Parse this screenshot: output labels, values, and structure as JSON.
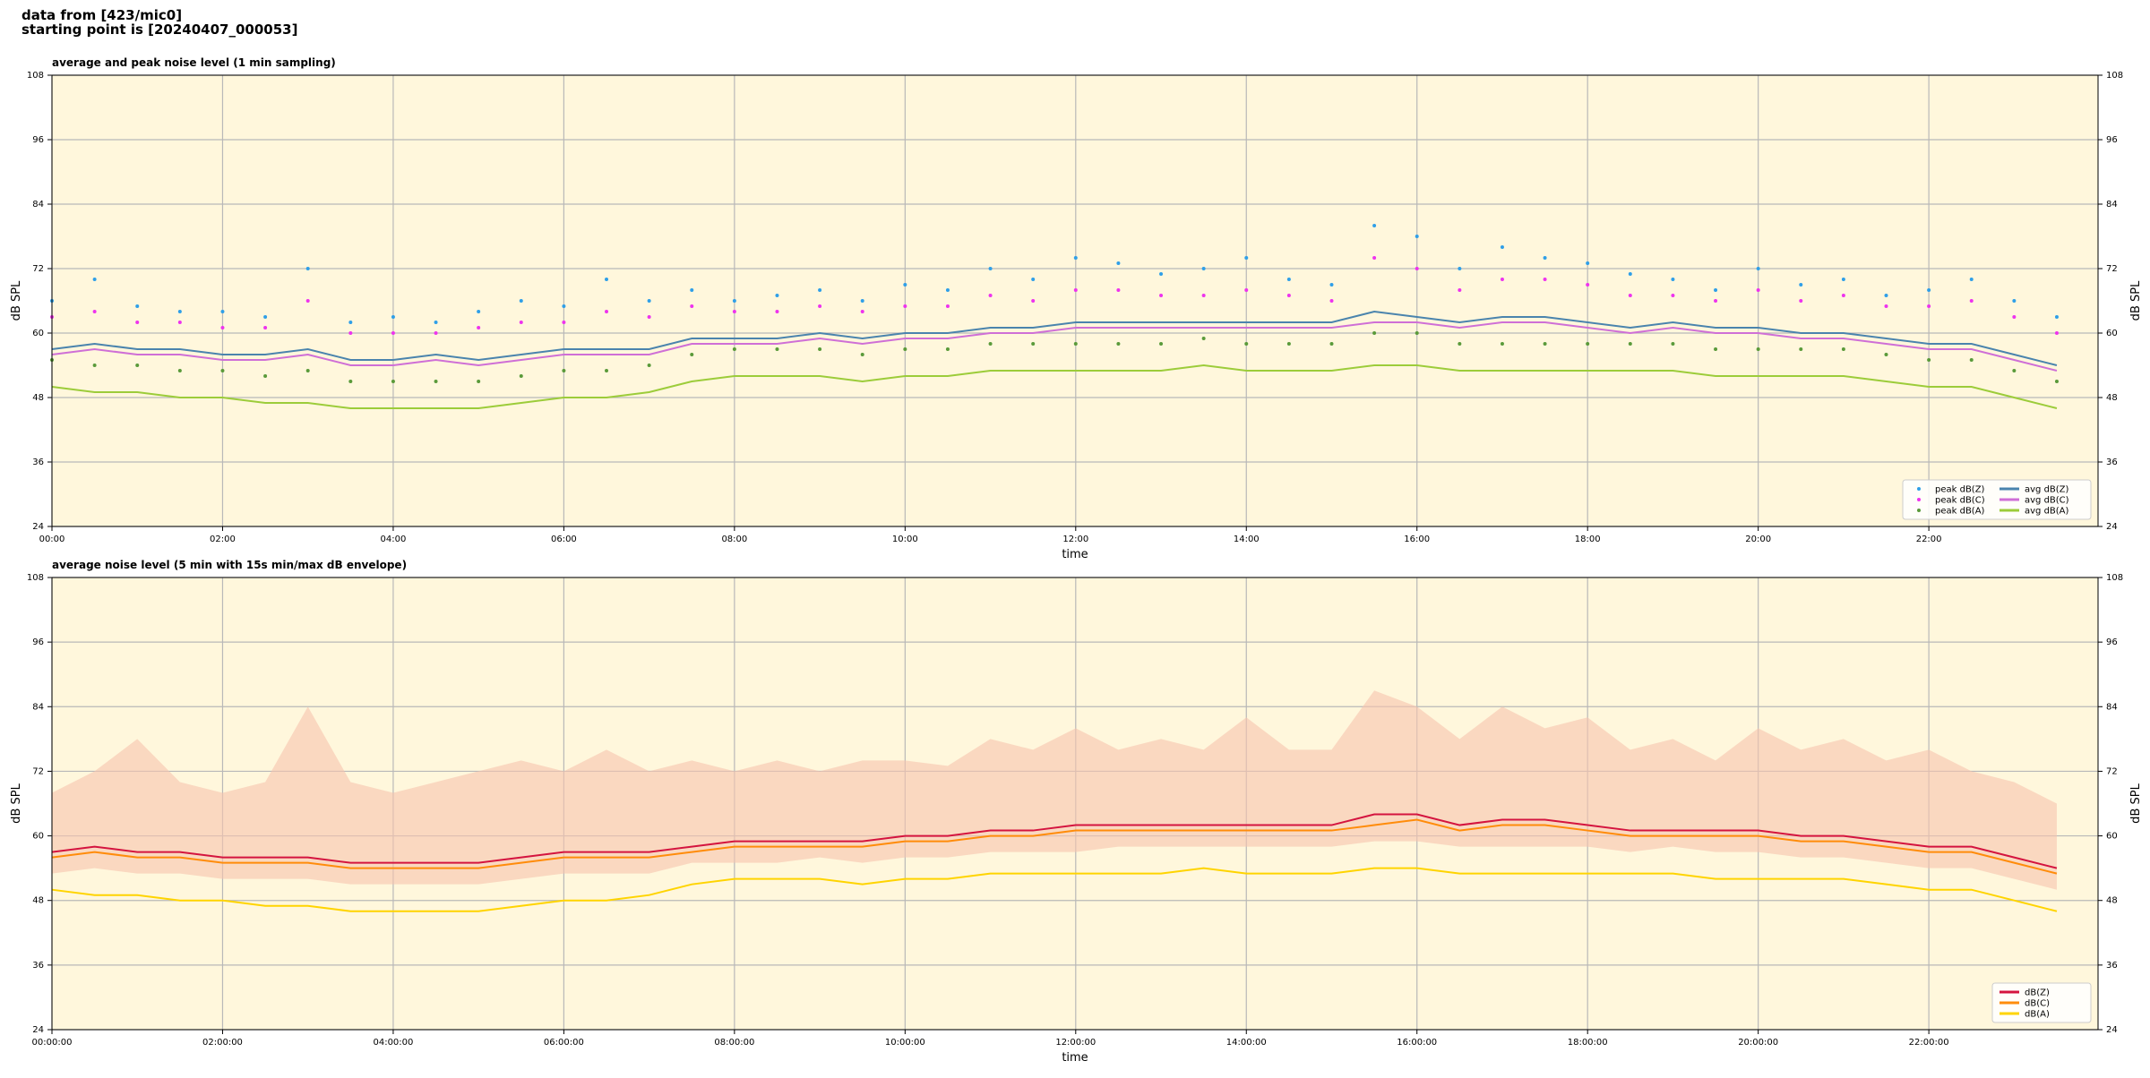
{
  "header": [
    "data from [423/mic0]",
    "starting point is [20240407_000053]"
  ],
  "chart_data": [
    {
      "type": "line",
      "title": "average and peak noise level (1 min sampling)",
      "xlabel": "time",
      "ylabel": "dB SPL",
      "x": [
        "00:00",
        "00:30",
        "01:00",
        "01:30",
        "02:00",
        "02:30",
        "03:00",
        "03:30",
        "04:00",
        "04:30",
        "05:00",
        "05:30",
        "06:00",
        "06:30",
        "07:00",
        "07:30",
        "08:00",
        "08:30",
        "09:00",
        "09:30",
        "10:00",
        "10:30",
        "11:00",
        "11:30",
        "12:00",
        "12:30",
        "13:00",
        "13:30",
        "14:00",
        "14:30",
        "15:00",
        "15:30",
        "16:00",
        "16:30",
        "17:00",
        "17:30",
        "18:00",
        "18:30",
        "19:00",
        "19:30",
        "20:00",
        "20:30",
        "21:00",
        "21:30",
        "22:00",
        "22:30",
        "23:00",
        "23:30"
      ],
      "xlim": [
        "00:00",
        "23:59"
      ],
      "xticks": [
        "00:00",
        "02:00",
        "04:00",
        "06:00",
        "08:00",
        "10:00",
        "12:00",
        "14:00",
        "16:00",
        "18:00",
        "20:00",
        "22:00"
      ],
      "ylim": [
        24,
        108
      ],
      "yticks": [
        24,
        36,
        48,
        60,
        72,
        84,
        96,
        108
      ],
      "grid": true,
      "legend": "lower right",
      "background": "#fff7dc",
      "series": [
        {
          "name": "peak dB(Z)",
          "kind": "scatter",
          "color": "#2f9fe8",
          "values": [
            66,
            70,
            65,
            64,
            64,
            63,
            72,
            62,
            63,
            62,
            64,
            66,
            65,
            70,
            66,
            68,
            66,
            67,
            68,
            66,
            69,
            68,
            72,
            70,
            74,
            73,
            71,
            72,
            74,
            70,
            69,
            80,
            78,
            72,
            76,
            74,
            73,
            71,
            70,
            68,
            72,
            69,
            70,
            67,
            68,
            70,
            66,
            63
          ]
        },
        {
          "name": "peak dB(C)",
          "kind": "scatter",
          "color": "#ee33ee",
          "values": [
            63,
            64,
            62,
            62,
            61,
            61,
            66,
            60,
            60,
            60,
            61,
            62,
            62,
            64,
            63,
            65,
            64,
            64,
            65,
            64,
            65,
            65,
            67,
            66,
            68,
            68,
            67,
            67,
            68,
            67,
            66,
            74,
            72,
            68,
            70,
            70,
            69,
            67,
            67,
            66,
            68,
            66,
            67,
            65,
            65,
            66,
            63,
            60
          ]
        },
        {
          "name": "peak dB(A)",
          "kind": "scatter",
          "color": "#5a9a3a",
          "values": [
            55,
            54,
            54,
            53,
            53,
            52,
            53,
            51,
            51,
            51,
            51,
            52,
            53,
            53,
            54,
            56,
            57,
            57,
            57,
            56,
            57,
            57,
            58,
            58,
            58,
            58,
            58,
            59,
            58,
            58,
            58,
            60,
            60,
            58,
            58,
            58,
            58,
            58,
            58,
            57,
            57,
            57,
            57,
            56,
            55,
            55,
            53,
            51
          ]
        },
        {
          "name": "avg dB(Z)",
          "kind": "line",
          "color": "#4a84ad",
          "values": [
            57,
            58,
            57,
            57,
            56,
            56,
            57,
            55,
            55,
            56,
            55,
            56,
            57,
            57,
            57,
            59,
            59,
            59,
            60,
            59,
            60,
            60,
            61,
            61,
            62,
            62,
            62,
            62,
            62,
            62,
            62,
            64,
            63,
            62,
            63,
            63,
            62,
            61,
            62,
            61,
            61,
            60,
            60,
            59,
            58,
            58,
            56,
            54
          ]
        },
        {
          "name": "avg dB(C)",
          "kind": "line",
          "color": "#cf6fd6",
          "values": [
            56,
            57,
            56,
            56,
            55,
            55,
            56,
            54,
            54,
            55,
            54,
            55,
            56,
            56,
            56,
            58,
            58,
            58,
            59,
            58,
            59,
            59,
            60,
            60,
            61,
            61,
            61,
            61,
            61,
            61,
            61,
            62,
            62,
            61,
            62,
            62,
            61,
            60,
            61,
            60,
            60,
            59,
            59,
            58,
            57,
            57,
            55,
            53
          ]
        },
        {
          "name": "avg dB(A)",
          "kind": "line",
          "color": "#9ccc3a",
          "values": [
            50,
            49,
            49,
            48,
            48,
            47,
            47,
            46,
            46,
            46,
            46,
            47,
            48,
            48,
            49,
            51,
            52,
            52,
            52,
            51,
            52,
            52,
            53,
            53,
            53,
            53,
            53,
            54,
            53,
            53,
            53,
            54,
            54,
            53,
            53,
            53,
            53,
            53,
            53,
            52,
            52,
            52,
            52,
            51,
            50,
            50,
            48,
            46
          ]
        }
      ]
    },
    {
      "type": "line",
      "title": "average noise level (5 min with 15s min/max dB envelope)",
      "xlabel": "time",
      "ylabel": "dB SPL",
      "x": [
        "00:00:00",
        "00:30:00",
        "01:00:00",
        "01:30:00",
        "02:00:00",
        "02:30:00",
        "03:00:00",
        "03:30:00",
        "04:00:00",
        "04:30:00",
        "05:00:00",
        "05:30:00",
        "06:00:00",
        "06:30:00",
        "07:00:00",
        "07:30:00",
        "08:00:00",
        "08:30:00",
        "09:00:00",
        "09:30:00",
        "10:00:00",
        "10:30:00",
        "11:00:00",
        "11:30:00",
        "12:00:00",
        "12:30:00",
        "13:00:00",
        "13:30:00",
        "14:00:00",
        "14:30:00",
        "15:00:00",
        "15:30:00",
        "16:00:00",
        "16:30:00",
        "17:00:00",
        "17:30:00",
        "18:00:00",
        "18:30:00",
        "19:00:00",
        "19:30:00",
        "20:00:00",
        "20:30:00",
        "21:00:00",
        "21:30:00",
        "22:00:00",
        "22:30:00",
        "23:00:00",
        "23:30:00"
      ],
      "xlim": [
        "00:00:00",
        "23:59:00"
      ],
      "xticks": [
        "00:00:00",
        "02:00:00",
        "04:00:00",
        "06:00:00",
        "08:00:00",
        "10:00:00",
        "12:00:00",
        "14:00:00",
        "16:00:00",
        "18:00:00",
        "20:00:00",
        "22:00:00"
      ],
      "ylim": [
        24,
        108
      ],
      "yticks": [
        24,
        36,
        48,
        60,
        72,
        84,
        96,
        108
      ],
      "grid": true,
      "legend": "lower right",
      "background": "#fff7dc",
      "band": {
        "color": "#f6c3ad",
        "lower": [
          53,
          54,
          53,
          53,
          52,
          52,
          52,
          51,
          51,
          51,
          51,
          52,
          53,
          53,
          53,
          55,
          55,
          55,
          56,
          55,
          56,
          56,
          57,
          57,
          57,
          58,
          58,
          58,
          58,
          58,
          58,
          59,
          59,
          58,
          58,
          58,
          58,
          57,
          58,
          57,
          57,
          56,
          56,
          55,
          54,
          54,
          52,
          50
        ],
        "upper": [
          68,
          72,
          78,
          70,
          68,
          70,
          84,
          70,
          68,
          70,
          72,
          74,
          72,
          76,
          72,
          74,
          72,
          74,
          72,
          74,
          74,
          73,
          78,
          76,
          80,
          76,
          78,
          76,
          82,
          76,
          76,
          87,
          84,
          78,
          84,
          80,
          82,
          76,
          78,
          74,
          80,
          76,
          78,
          74,
          76,
          72,
          70,
          66
        ]
      },
      "series": [
        {
          "name": "dB(Z)",
          "color": "#d4143f",
          "values": [
            57,
            58,
            57,
            57,
            56,
            56,
            56,
            55,
            55,
            55,
            55,
            56,
            57,
            57,
            57,
            58,
            59,
            59,
            59,
            59,
            60,
            60,
            61,
            61,
            62,
            62,
            62,
            62,
            62,
            62,
            62,
            64,
            64,
            62,
            63,
            63,
            62,
            61,
            61,
            61,
            61,
            60,
            60,
            59,
            58,
            58,
            56,
            54
          ]
        },
        {
          "name": "dB(C)",
          "color": "#ff8c0a",
          "values": [
            56,
            57,
            56,
            56,
            55,
            55,
            55,
            54,
            54,
            54,
            54,
            55,
            56,
            56,
            56,
            57,
            58,
            58,
            58,
            58,
            59,
            59,
            60,
            60,
            61,
            61,
            61,
            61,
            61,
            61,
            61,
            62,
            63,
            61,
            62,
            62,
            61,
            60,
            60,
            60,
            60,
            59,
            59,
            58,
            57,
            57,
            55,
            53
          ]
        },
        {
          "name": "dB(A)",
          "color": "#ffd400",
          "values": [
            50,
            49,
            49,
            48,
            48,
            47,
            47,
            46,
            46,
            46,
            46,
            47,
            48,
            48,
            49,
            51,
            52,
            52,
            52,
            51,
            52,
            52,
            53,
            53,
            53,
            53,
            53,
            54,
            53,
            53,
            53,
            54,
            54,
            53,
            53,
            53,
            53,
            53,
            53,
            52,
            52,
            52,
            52,
            51,
            50,
            50,
            48,
            46
          ]
        }
      ]
    }
  ]
}
